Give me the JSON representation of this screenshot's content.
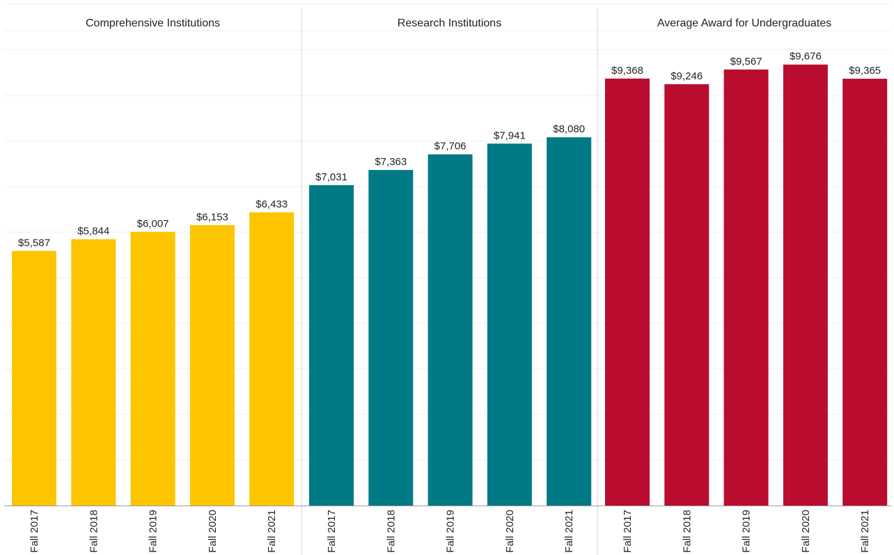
{
  "chart_data": {
    "type": "bar",
    "ylim": [
      0,
      11000
    ],
    "grid": true,
    "panels": [
      {
        "title": "Comprehensive Institutions",
        "color": "#FDC500",
        "categories": [
          "Fall 2017",
          "Fall 2018",
          "Fall 2019",
          "Fall 2020",
          "Fall 2021"
        ],
        "values": [
          5587,
          5844,
          6007,
          6153,
          6433
        ],
        "labels": [
          "$5,587",
          "$5,844",
          "$6,007",
          "$6,153",
          "$6,433"
        ]
      },
      {
        "title": "Research Institutions",
        "color": "#007A84",
        "categories": [
          "Fall 2017",
          "Fall 2018",
          "Fall 2019",
          "Fall 2020",
          "Fall 2021"
        ],
        "values": [
          7031,
          7363,
          7706,
          7941,
          8080
        ],
        "labels": [
          "$7,031",
          "$7,363",
          "$7,706",
          "$7,941",
          "$8,080"
        ]
      },
      {
        "title": "Average Award for Undergraduates",
        "color": "#BA0C2F",
        "categories": [
          "Fall 2017",
          "Fall 2018",
          "Fall 2019",
          "Fall 2020",
          "Fall 2021"
        ],
        "values": [
          9368,
          9246,
          9567,
          9676,
          9365
        ],
        "labels": [
          "$9,368",
          "$9,246",
          "$9,567",
          "$9,676",
          "$9,365"
        ]
      }
    ]
  }
}
